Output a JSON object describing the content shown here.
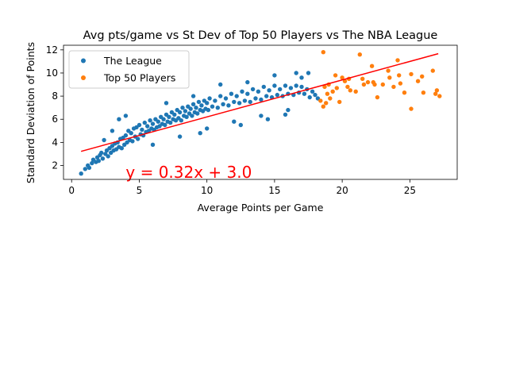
{
  "chart_data": {
    "type": "scatter",
    "title": "Avg pts/game vs St Dev of Top 50 Players vs The NBA League",
    "xlabel": "Average Points per Game",
    "ylabel": "Standard Deviation of Points",
    "xlim": [
      -0.6,
      28.5
    ],
    "ylim": [
      0.8,
      12.4
    ],
    "xticks": [
      0,
      5,
      10,
      15,
      20,
      25
    ],
    "yticks": [
      2,
      4,
      6,
      8,
      10,
      12
    ],
    "grid": false,
    "legend_position": "top-left",
    "series": [
      {
        "name": "The League",
        "color": "#1f77b4",
        "marker": "circle",
        "points": [
          [
            0.7,
            1.3
          ],
          [
            1.0,
            1.7
          ],
          [
            1.2,
            2.0
          ],
          [
            1.3,
            1.8
          ],
          [
            1.5,
            2.2
          ],
          [
            1.6,
            2.5
          ],
          [
            1.8,
            2.3
          ],
          [
            1.9,
            2.7
          ],
          [
            2.0,
            2.4
          ],
          [
            2.1,
            2.9
          ],
          [
            2.2,
            3.1
          ],
          [
            2.3,
            2.6
          ],
          [
            2.4,
            4.2
          ],
          [
            2.5,
            3.0
          ],
          [
            2.6,
            3.3
          ],
          [
            2.7,
            2.8
          ],
          [
            2.8,
            3.5
          ],
          [
            2.9,
            3.1
          ],
          [
            3.0,
            3.7
          ],
          [
            3.1,
            3.3
          ],
          [
            3.2,
            3.9
          ],
          [
            3.3,
            3.4
          ],
          [
            3.4,
            4.0
          ],
          [
            3.5,
            3.6
          ],
          [
            3.6,
            4.3
          ],
          [
            3.7,
            3.5
          ],
          [
            3.8,
            4.4
          ],
          [
            3.9,
            3.8
          ],
          [
            4.0,
            4.6
          ],
          [
            4.1,
            4.0
          ],
          [
            4.2,
            5.0
          ],
          [
            4.3,
            4.2
          ],
          [
            4.4,
            4.8
          ],
          [
            4.5,
            4.1
          ],
          [
            4.6,
            5.2
          ],
          [
            4.7,
            4.5
          ],
          [
            4.8,
            5.3
          ],
          [
            4.9,
            4.3
          ],
          [
            5.0,
            5.5
          ],
          [
            5.1,
            4.7
          ],
          [
            5.2,
            5.1
          ],
          [
            5.3,
            4.6
          ],
          [
            5.4,
            5.7
          ],
          [
            5.5,
            4.9
          ],
          [
            5.6,
            5.4
          ],
          [
            5.7,
            5.0
          ],
          [
            5.8,
            5.9
          ],
          [
            5.9,
            5.2
          ],
          [
            6.0,
            5.6
          ],
          [
            6.1,
            5.1
          ],
          [
            6.2,
            6.0
          ],
          [
            6.3,
            5.3
          ],
          [
            6.4,
            5.8
          ],
          [
            6.5,
            5.4
          ],
          [
            6.6,
            6.2
          ],
          [
            6.7,
            5.6
          ],
          [
            6.8,
            6.0
          ],
          [
            6.9,
            5.5
          ],
          [
            7.0,
            6.4
          ],
          [
            7.1,
            5.8
          ],
          [
            7.2,
            6.2
          ],
          [
            7.3,
            5.7
          ],
          [
            7.4,
            6.6
          ],
          [
            7.5,
            6.0
          ],
          [
            7.6,
            6.4
          ],
          [
            7.7,
            5.9
          ],
          [
            7.8,
            6.8
          ],
          [
            7.9,
            6.1
          ],
          [
            8.0,
            6.6
          ],
          [
            8.1,
            5.9
          ],
          [
            8.2,
            7.0
          ],
          [
            8.3,
            6.3
          ],
          [
            8.4,
            6.7
          ],
          [
            8.5,
            6.2
          ],
          [
            8.6,
            7.1
          ],
          [
            8.7,
            6.5
          ],
          [
            8.8,
            6.9
          ],
          [
            8.9,
            6.3
          ],
          [
            9.0,
            7.3
          ],
          [
            9.1,
            6.6
          ],
          [
            9.2,
            7.0
          ],
          [
            9.3,
            6.5
          ],
          [
            9.4,
            7.5
          ],
          [
            9.5,
            6.8
          ],
          [
            9.6,
            7.2
          ],
          [
            9.7,
            6.7
          ],
          [
            9.8,
            7.6
          ],
          [
            9.9,
            6.9
          ],
          [
            10.0,
            7.4
          ],
          [
            10.1,
            6.8
          ],
          [
            10.2,
            7.8
          ],
          [
            10.4,
            7.1
          ],
          [
            10.6,
            7.6
          ],
          [
            10.8,
            7.0
          ],
          [
            11.0,
            8.0
          ],
          [
            11.2,
            7.3
          ],
          [
            11.4,
            7.8
          ],
          [
            11.6,
            7.2
          ],
          [
            11.8,
            8.2
          ],
          [
            12.0,
            7.5
          ],
          [
            12.2,
            8.0
          ],
          [
            12.4,
            7.4
          ],
          [
            12.6,
            8.4
          ],
          [
            12.8,
            7.6
          ],
          [
            13.0,
            8.2
          ],
          [
            13.2,
            7.5
          ],
          [
            13.4,
            8.6
          ],
          [
            13.6,
            7.8
          ],
          [
            13.8,
            8.4
          ],
          [
            14.0,
            7.7
          ],
          [
            14.2,
            8.8
          ],
          [
            14.4,
            8.0
          ],
          [
            14.6,
            8.5
          ],
          [
            14.8,
            7.9
          ],
          [
            15.0,
            8.9
          ],
          [
            15.2,
            8.1
          ],
          [
            15.4,
            8.6
          ],
          [
            15.6,
            8.0
          ],
          [
            15.8,
            8.9
          ],
          [
            16.0,
            8.2
          ],
          [
            16.2,
            8.7
          ],
          [
            16.4,
            8.1
          ],
          [
            16.6,
            8.9
          ],
          [
            16.8,
            8.3
          ],
          [
            17.0,
            8.8
          ],
          [
            17.2,
            8.2
          ],
          [
            17.4,
            8.6
          ],
          [
            17.6,
            7.9
          ],
          [
            17.8,
            8.4
          ],
          [
            18.0,
            8.1
          ],
          [
            6.0,
            3.8
          ],
          [
            8.0,
            4.5
          ],
          [
            10.0,
            5.2
          ],
          [
            12.0,
            5.8
          ],
          [
            14.0,
            6.3
          ],
          [
            16.0,
            6.8
          ],
          [
            18.2,
            7.8
          ],
          [
            7.0,
            7.4
          ],
          [
            9.0,
            8.0
          ],
          [
            11.0,
            9.0
          ],
          [
            13.0,
            9.2
          ],
          [
            15.0,
            9.8
          ],
          [
            16.6,
            10.0
          ],
          [
            3.0,
            5.0
          ],
          [
            3.5,
            6.0
          ],
          [
            4.0,
            6.3
          ],
          [
            17.5,
            10.0
          ],
          [
            17.0,
            9.6
          ],
          [
            15.8,
            6.4
          ],
          [
            14.5,
            6.0
          ],
          [
            12.5,
            5.5
          ],
          [
            9.5,
            4.8
          ]
        ]
      },
      {
        "name": "Top 50 Players",
        "color": "#ff7f0e",
        "marker": "circle",
        "points": [
          [
            18.4,
            7.6
          ],
          [
            18.6,
            11.8
          ],
          [
            18.6,
            7.1
          ],
          [
            18.7,
            8.8
          ],
          [
            18.8,
            7.4
          ],
          [
            18.9,
            8.2
          ],
          [
            19.0,
            9.0
          ],
          [
            19.1,
            7.8
          ],
          [
            19.3,
            8.4
          ],
          [
            19.5,
            9.8
          ],
          [
            19.6,
            8.7
          ],
          [
            19.8,
            7.5
          ],
          [
            20.0,
            9.6
          ],
          [
            20.2,
            9.3
          ],
          [
            20.4,
            8.8
          ],
          [
            20.5,
            9.5
          ],
          [
            20.6,
            8.5
          ],
          [
            21.0,
            8.4
          ],
          [
            21.3,
            11.6
          ],
          [
            21.5,
            9.5
          ],
          [
            21.6,
            9.0
          ],
          [
            21.9,
            9.2
          ],
          [
            22.2,
            10.6
          ],
          [
            22.3,
            9.2
          ],
          [
            22.4,
            9.0
          ],
          [
            22.6,
            7.9
          ],
          [
            23.0,
            9.0
          ],
          [
            23.4,
            10.2
          ],
          [
            23.5,
            9.6
          ],
          [
            23.8,
            8.8
          ],
          [
            24.1,
            11.1
          ],
          [
            24.2,
            9.8
          ],
          [
            24.3,
            9.1
          ],
          [
            24.6,
            8.3
          ],
          [
            25.1,
            9.9
          ],
          [
            25.1,
            6.9
          ],
          [
            25.6,
            9.3
          ],
          [
            25.9,
            9.7
          ],
          [
            26.0,
            8.3
          ],
          [
            26.7,
            10.2
          ],
          [
            26.9,
            8.2
          ],
          [
            27.0,
            8.5
          ],
          [
            27.2,
            8.0
          ]
        ]
      }
    ],
    "trendline": {
      "slope": 0.32,
      "intercept": 3.0,
      "x_range": [
        0.7,
        27.1
      ],
      "color": "#ff0000",
      "label": "y = 0.32x + 3.0",
      "label_position": [
        4.0,
        1.2
      ],
      "label_color": "#ff0000"
    }
  }
}
